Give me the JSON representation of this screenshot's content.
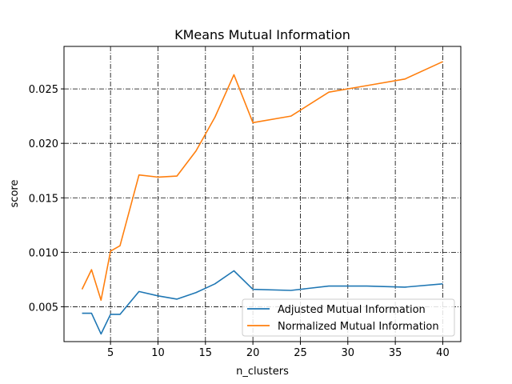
{
  "chart_data": {
    "type": "line",
    "title": "KMeans Mutual Information",
    "xlabel": "n_clusters",
    "ylabel": "score",
    "xlim": [
      0.1,
      41.9
    ],
    "ylim": [
      0.0018,
      0.0289
    ],
    "xticks": [
      5,
      10,
      15,
      20,
      25,
      30,
      35,
      40
    ],
    "xtick_labels": [
      "5",
      "10",
      "15",
      "20",
      "25",
      "30",
      "35",
      "40"
    ],
    "yticks": [
      0.005,
      0.01,
      0.015,
      0.02,
      0.025
    ],
    "ytick_labels": [
      "0.005",
      "0.010",
      "0.015",
      "0.020",
      "0.025"
    ],
    "grid": true,
    "legend_position": "lower-right",
    "x": [
      2,
      3,
      4,
      5,
      6,
      8,
      10,
      12,
      14,
      16,
      18,
      20,
      24,
      28,
      32,
      36,
      40
    ],
    "series": [
      {
        "name": "Adjusted Mutual Information",
        "color": "#1f77b4",
        "values": [
          0.0044,
          0.0044,
          0.0025,
          0.0043,
          0.0043,
          0.0064,
          0.006,
          0.0057,
          0.0063,
          0.0071,
          0.0083,
          0.0066,
          0.0065,
          0.0069,
          0.0069,
          0.0068,
          0.0071
        ]
      },
      {
        "name": "Normalized Mutual Information",
        "color": "#ff7f0e",
        "values": [
          0.0066,
          0.0084,
          0.0056,
          0.0101,
          0.0106,
          0.0171,
          0.0169,
          0.017,
          0.0193,
          0.0224,
          0.0263,
          0.0219,
          0.0225,
          0.0247,
          0.0253,
          0.0259,
          0.0275
        ]
      }
    ]
  }
}
